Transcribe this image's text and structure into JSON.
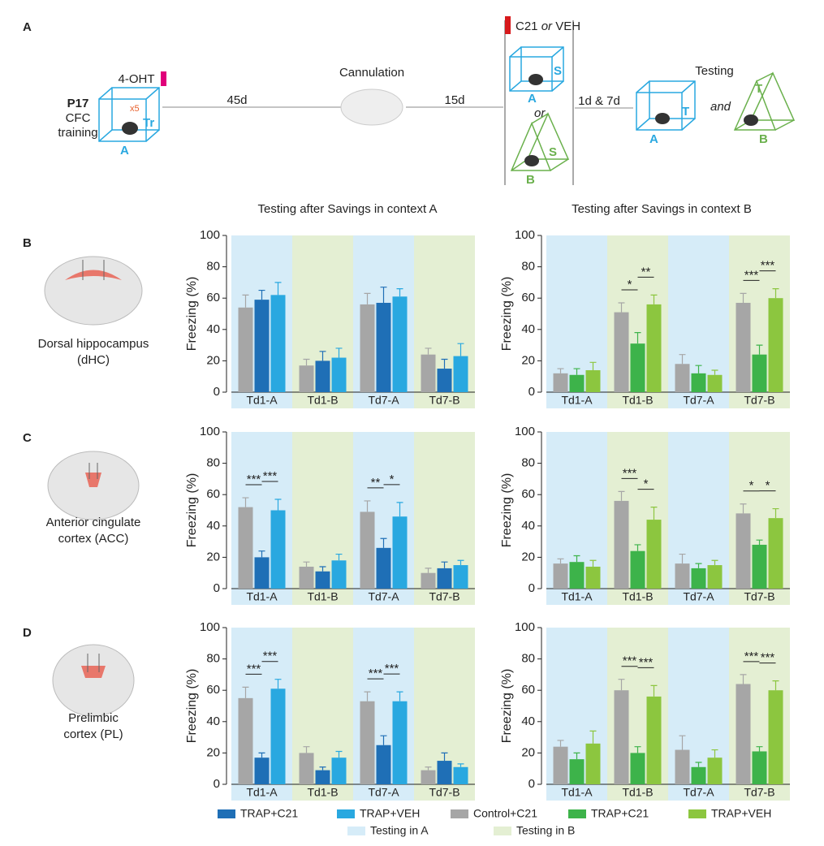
{
  "diagram": {
    "letter": "A",
    "p17": "P17",
    "cfc": "CFC",
    "training": "training",
    "ohť": "4-OHT",
    "x5": "x5",
    "tr": "Tr",
    "ctx1": "A",
    "d45": "45d",
    "cannulation": "Cannulation",
    "d15": "15d",
    "c21": "C21",
    "or1": "or",
    "veh": "VEH",
    "s1": "S",
    "ctx2": "A",
    "or2": "or",
    "s2": "S",
    "ctx3": "B",
    "d17": "1d & 7d",
    "testing": "Testing",
    "t1": "T",
    "ctx4": "A",
    "and": "and",
    "t2": "T",
    "ctx5": "B"
  },
  "columns": [
    "Testing after Savings in context A",
    "Testing after Savings in context B"
  ],
  "rows": [
    {
      "letter": "B",
      "region": [
        "Dorsal hippocampus",
        "(dHC)"
      ]
    },
    {
      "letter": "C",
      "region": [
        "Anterior cingulate",
        "cortex (ACC)"
      ]
    },
    {
      "letter": "D",
      "region": [
        "Prelimbic",
        "cortex (PL)"
      ]
    }
  ],
  "context_legend": [
    {
      "name": "Testing in A",
      "color": "#d6ecf8"
    },
    {
      "name": "Testing in B",
      "color": "#e4efd3"
    }
  ],
  "chart_data": [
    {
      "type": "bar",
      "y_label": "Freezing (%)",
      "categories": [
        "Td1-A",
        "Td1-B",
        "Td7-A",
        "Td7-B"
      ],
      "band_colors": [
        "#d6ecf8",
        "#e4efd3",
        "#d6ecf8",
        "#e4efd3"
      ],
      "ylim": [
        0,
        100
      ],
      "yticks": [
        0,
        20,
        40,
        60,
        80,
        100
      ],
      "series": [
        {
          "name": "Control+C21",
          "color": "#a6a6a6",
          "values": [
            54,
            17,
            56,
            24
          ],
          "errors": [
            8,
            4,
            7,
            4
          ]
        },
        {
          "name": "TRAP+C21",
          "color": "#1f6fb6",
          "values": [
            59,
            20,
            57,
            15
          ],
          "errors": [
            6,
            6,
            10,
            6
          ]
        },
        {
          "name": "TRAP+VEH",
          "color": "#29a8e0",
          "values": [
            62,
            22,
            61,
            23
          ],
          "errors": [
            8,
            6,
            5,
            8
          ]
        }
      ],
      "annotations_left": [
        null,
        null,
        null,
        null
      ],
      "annotations_right": [
        null,
        null,
        null,
        null
      ]
    },
    {
      "type": "bar",
      "y_label": "Freezing (%)",
      "categories": [
        "Td1-A",
        "Td1-B",
        "Td7-A",
        "Td7-B"
      ],
      "band_colors": [
        "#d6ecf8",
        "#e4efd3",
        "#d6ecf8",
        "#e4efd3"
      ],
      "ylim": [
        0,
        100
      ],
      "yticks": [
        0,
        20,
        40,
        60,
        80,
        100
      ],
      "series": [
        {
          "name": "Control+C21",
          "color": "#a6a6a6",
          "values": [
            12,
            51,
            18,
            57
          ],
          "errors": [
            3,
            6,
            6,
            6
          ]
        },
        {
          "name": "TRAP+C21",
          "color": "#3db34a",
          "values": [
            11,
            31,
            12,
            24
          ],
          "errors": [
            4,
            7,
            5,
            6
          ]
        },
        {
          "name": "TRAP+VEH",
          "color": "#8cc63f",
          "values": [
            14,
            56,
            11,
            60
          ],
          "errors": [
            5,
            6,
            3,
            6
          ]
        }
      ],
      "annotations_left": [
        null,
        "*",
        null,
        "***"
      ],
      "annotations_right": [
        null,
        "**",
        null,
        "***"
      ]
    },
    {
      "type": "bar",
      "y_label": "Freezing (%)",
      "categories": [
        "Td1-A",
        "Td1-B",
        "Td7-A",
        "Td7-B"
      ],
      "band_colors": [
        "#d6ecf8",
        "#e4efd3",
        "#d6ecf8",
        "#e4efd3"
      ],
      "ylim": [
        0,
        100
      ],
      "yticks": [
        0,
        20,
        40,
        60,
        80,
        100
      ],
      "series": [
        {
          "color": "#a6a6a6",
          "values": [
            52,
            14,
            49,
            10
          ],
          "errors": [
            6,
            3,
            7,
            3
          ]
        },
        {
          "color": "#1f6fb6",
          "values": [
            20,
            11,
            26,
            13
          ],
          "errors": [
            4,
            3,
            6,
            4
          ]
        },
        {
          "color": "#29a8e0",
          "values": [
            50,
            18,
            46,
            15
          ],
          "errors": [
            7,
            4,
            9,
            3
          ]
        }
      ],
      "annotations_left": [
        "***",
        null,
        "**",
        null
      ],
      "annotations_right": [
        "***",
        null,
        "*",
        null
      ]
    },
    {
      "type": "bar",
      "y_label": "Freezing (%)",
      "categories": [
        "Td1-A",
        "Td1-B",
        "Td7-A",
        "Td7-B"
      ],
      "band_colors": [
        "#d6ecf8",
        "#e4efd3",
        "#d6ecf8",
        "#e4efd3"
      ],
      "ylim": [
        0,
        100
      ],
      "yticks": [
        0,
        20,
        40,
        60,
        80,
        100
      ],
      "series": [
        {
          "color": "#a6a6a6",
          "values": [
            16,
            56,
            16,
            48
          ],
          "errors": [
            3,
            6,
            6,
            6
          ]
        },
        {
          "color": "#3db34a",
          "values": [
            17,
            24,
            13,
            28
          ],
          "errors": [
            4,
            4,
            3,
            3
          ]
        },
        {
          "color": "#8cc63f",
          "values": [
            14,
            44,
            15,
            45
          ],
          "errors": [
            4,
            8,
            3,
            6
          ]
        }
      ],
      "annotations_left": [
        null,
        "***",
        null,
        "*"
      ],
      "annotations_right": [
        null,
        "*",
        null,
        "*"
      ]
    },
    {
      "type": "bar",
      "y_label": "Freezing (%)",
      "categories": [
        "Td1-A",
        "Td1-B",
        "Td7-A",
        "Td7-B"
      ],
      "band_colors": [
        "#d6ecf8",
        "#e4efd3",
        "#d6ecf8",
        "#e4efd3"
      ],
      "ylim": [
        0,
        100
      ],
      "yticks": [
        0,
        20,
        40,
        60,
        80,
        100
      ],
      "series": [
        {
          "color": "#a6a6a6",
          "values": [
            55,
            20,
            53,
            9
          ],
          "errors": [
            7,
            4,
            6,
            2
          ]
        },
        {
          "color": "#1f6fb6",
          "values": [
            17,
            9,
            25,
            15
          ],
          "errors": [
            3,
            2,
            6,
            5
          ]
        },
        {
          "color": "#29a8e0",
          "values": [
            61,
            17,
            53,
            11
          ],
          "errors": [
            6,
            4,
            6,
            2
          ]
        }
      ],
      "annotations_left": [
        "***",
        null,
        "***",
        null
      ],
      "annotations_right": [
        "***",
        null,
        "***",
        null
      ]
    },
    {
      "type": "bar",
      "y_label": "Freezing (%)",
      "categories": [
        "Td1-A",
        "Td1-B",
        "Td7-A",
        "Td7-B"
      ],
      "band_colors": [
        "#d6ecf8",
        "#e4efd3",
        "#d6ecf8",
        "#e4efd3"
      ],
      "ylim": [
        0,
        100
      ],
      "yticks": [
        0,
        20,
        40,
        60,
        80,
        100
      ],
      "series": [
        {
          "color": "#a6a6a6",
          "values": [
            24,
            60,
            22,
            64
          ],
          "errors": [
            4,
            7,
            9,
            6
          ]
        },
        {
          "color": "#3db34a",
          "values": [
            16,
            20,
            11,
            21
          ],
          "errors": [
            4,
            4,
            3,
            3
          ]
        },
        {
          "color": "#8cc63f",
          "values": [
            26,
            56,
            17,
            60
          ],
          "errors": [
            8,
            7,
            5,
            6
          ]
        }
      ],
      "annotations_left": [
        null,
        "***",
        null,
        "***"
      ],
      "annotations_right": [
        null,
        "***",
        null,
        "***"
      ]
    }
  ]
}
